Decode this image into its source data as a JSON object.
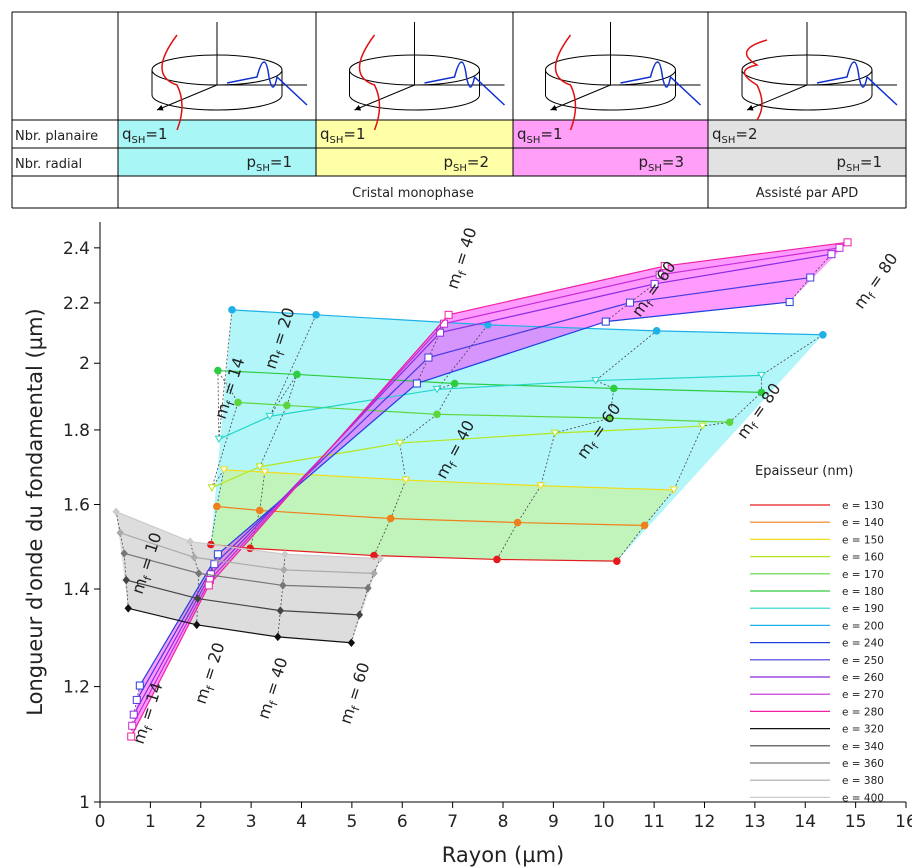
{
  "table": {
    "row_labels": [
      "Nbr. planaire",
      "Nbr. radial"
    ],
    "planar": [
      [
        "q",
        "SH",
        "=1"
      ],
      [
        "q",
        "SH",
        "=1"
      ],
      [
        "q",
        "SH",
        "=1"
      ],
      [
        "q",
        "SH",
        "=2"
      ]
    ],
    "radial": [
      [
        "p",
        "SH",
        "=1"
      ],
      [
        "p",
        "SH",
        "=2"
      ],
      [
        "p",
        "SH",
        "=3"
      ],
      [
        "p",
        "SH",
        "=1"
      ]
    ],
    "groups": [
      "Cristal monophase",
      "Assisté par APD"
    ]
  },
  "chart_data": {
    "type": "line",
    "xlabel": "Rayon (µm)",
    "ylabel": "Longueur d'onde du fondamental (µm)",
    "xlim": [
      0,
      16
    ],
    "xticks": [
      0,
      1,
      2,
      3,
      4,
      5,
      6,
      7,
      8,
      9,
      10,
      11,
      12,
      13,
      14,
      15,
      16
    ],
    "ylim": [
      1,
      2.5
    ],
    "yticks": [
      1,
      1.2,
      1.4,
      1.6,
      1.8,
      2,
      2.2,
      2.4
    ],
    "ylog": true,
    "legend_title": "Epaisseur (nm)",
    "legend": "right",
    "series": [
      {
        "name": "e = 130",
        "color": "#e41a1c",
        "marker": "circle",
        "x": [
          2.2,
          2.98,
          5.44,
          7.88,
          10.26
        ],
        "values": [
          1.502,
          1.493,
          1.476,
          1.467,
          1.463
        ]
      },
      {
        "name": "e = 140",
        "color": "#f07f1a",
        "marker": "circle",
        "x": [
          2.32,
          3.17,
          5.77,
          8.29,
          10.81
        ],
        "values": [
          1.595,
          1.585,
          1.565,
          1.555,
          1.548
        ]
      },
      {
        "name": "e = 150",
        "color": "#f0dc1a",
        "marker": "triangle",
        "x": [
          2.46,
          3.27,
          6.07,
          8.75,
          11.39
        ],
        "values": [
          1.69,
          1.684,
          1.663,
          1.648,
          1.637
        ]
      },
      {
        "name": "e = 160",
        "color": "#b5e61d",
        "marker": "triangle",
        "x": [
          2.22,
          3.17,
          5.95,
          9.03,
          11.96
        ],
        "values": [
          1.643,
          1.698,
          1.763,
          1.791,
          1.811
        ]
      },
      {
        "name": "e = 170",
        "color": "#5dd63b",
        "marker": "circle",
        "x": [
          2.74,
          3.71,
          6.69,
          10.12,
          12.5
        ],
        "values": [
          1.88,
          1.871,
          1.845,
          1.834,
          1.822
        ]
      },
      {
        "name": "e = 180",
        "color": "#2ecc40",
        "marker": "circle",
        "x": [
          2.34,
          3.91,
          7.04,
          10.2,
          13.13
        ],
        "values": [
          1.977,
          1.965,
          1.937,
          1.922,
          1.91
        ]
      },
      {
        "name": "e = 190",
        "color": "#24d6c8",
        "marker": "triangle",
        "x": [
          2.36,
          3.37,
          6.69,
          9.84,
          13.13
        ],
        "values": [
          1.774,
          1.839,
          1.919,
          1.946,
          1.962
        ]
      },
      {
        "name": "e = 200",
        "color": "#1fb0e8",
        "marker": "circle",
        "x": [
          2.62,
          4.29,
          7.7,
          11.05,
          14.35
        ],
        "values": [
          2.176,
          2.159,
          2.125,
          2.105,
          2.092
        ]
      },
      {
        "name": "e = 240",
        "color": "#2040e0",
        "marker": "square",
        "x": [
          0.79,
          2.34,
          6.29,
          10.04,
          13.69
        ],
        "values": [
          1.202,
          1.479,
          1.937,
          2.136,
          2.203
        ]
      },
      {
        "name": "e = 250",
        "color": "#4a3ae0",
        "marker": "square",
        "x": [
          0.73,
          2.27,
          6.52,
          10.52,
          14.1
        ],
        "values": [
          1.175,
          1.456,
          2.018,
          2.201,
          2.29
        ]
      },
      {
        "name": "e = 260",
        "color": "#8a2be2",
        "marker": "square",
        "x": [
          0.67,
          2.2,
          6.75,
          11.01,
          14.52
        ],
        "values": [
          1.148,
          1.433,
          2.099,
          2.267,
          2.376
        ]
      },
      {
        "name": "e = 270",
        "color": "#c42ad8",
        "marker": "square",
        "x": [
          0.64,
          2.18,
          6.83,
          11.11,
          14.68
        ],
        "values": [
          1.128,
          1.42,
          2.129,
          2.3,
          2.4
        ]
      },
      {
        "name": "e = 280",
        "color": "#f020a0",
        "marker": "square",
        "x": [
          0.62,
          2.16,
          6.92,
          11.21,
          14.84
        ],
        "values": [
          1.109,
          1.408,
          2.159,
          2.332,
          2.421
        ]
      },
      {
        "name": "e = 320",
        "color": "#111111",
        "marker": "diamond",
        "x": [
          0.56,
          1.92,
          3.53,
          4.99
        ],
        "values": [
          1.358,
          1.323,
          1.298,
          1.286
        ]
      },
      {
        "name": "e = 340",
        "color": "#444444",
        "marker": "diamond",
        "x": [
          0.52,
          1.94,
          3.58,
          5.15
        ],
        "values": [
          1.42,
          1.379,
          1.353,
          1.344
        ]
      },
      {
        "name": "e = 360",
        "color": "#777777",
        "marker": "diamond",
        "x": [
          0.48,
          1.96,
          3.63,
          5.32
        ],
        "values": [
          1.481,
          1.435,
          1.408,
          1.402
        ]
      },
      {
        "name": "e = 380",
        "color": "#aaaaaa",
        "marker": "diamond",
        "x": [
          0.4,
          1.87,
          3.65,
          5.44
        ],
        "values": [
          1.53,
          1.472,
          1.443,
          1.435
        ]
      },
      {
        "name": "e = 400",
        "color": "#cccccc",
        "marker": "diamond",
        "x": [
          0.32,
          1.79,
          3.67,
          5.56
        ],
        "values": [
          1.582,
          1.509,
          1.479,
          1.469
        ]
      }
    ],
    "annotations": [
      [
        "m",
        "f",
        " = 40"
      ],
      [
        "m",
        "f",
        " = 60"
      ],
      [
        "m",
        "f",
        " = 80"
      ],
      [
        "m",
        "f",
        " = 14"
      ],
      [
        "m",
        "f",
        " = 20"
      ],
      [
        "m",
        "f",
        " = 40"
      ],
      [
        "m",
        "f",
        " = 60"
      ],
      [
        "m",
        "f",
        " = 80"
      ],
      [
        "m",
        "f",
        " = 10"
      ],
      [
        "m",
        "f",
        " = 20"
      ],
      [
        "m",
        "f",
        " = 40"
      ],
      [
        "m",
        "f",
        " = 60"
      ],
      [
        "m",
        "f",
        " = 14"
      ]
    ]
  }
}
